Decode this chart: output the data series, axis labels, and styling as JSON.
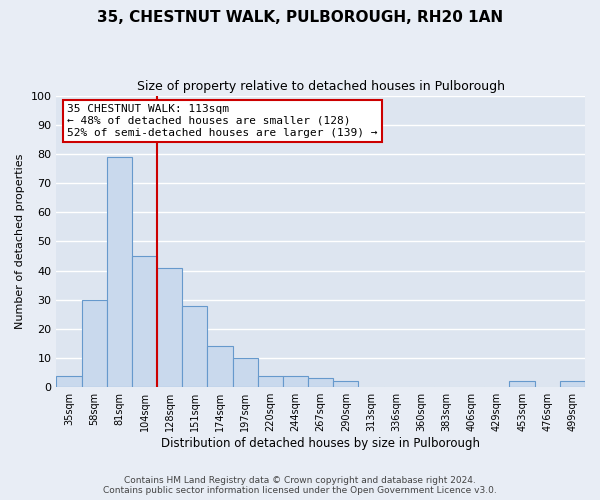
{
  "title": "35, CHESTNUT WALK, PULBOROUGH, RH20 1AN",
  "subtitle": "Size of property relative to detached houses in Pulborough",
  "xlabel": "Distribution of detached houses by size in Pulborough",
  "ylabel": "Number of detached properties",
  "footer_line1": "Contains HM Land Registry data © Crown copyright and database right 2024.",
  "footer_line2": "Contains public sector information licensed under the Open Government Licence v3.0.",
  "bar_labels": [
    "35sqm",
    "58sqm",
    "81sqm",
    "104sqm",
    "128sqm",
    "151sqm",
    "174sqm",
    "197sqm",
    "220sqm",
    "244sqm",
    "267sqm",
    "290sqm",
    "313sqm",
    "336sqm",
    "360sqm",
    "383sqm",
    "406sqm",
    "429sqm",
    "453sqm",
    "476sqm",
    "499sqm"
  ],
  "bar_heights": [
    4,
    30,
    79,
    45,
    41,
    28,
    14,
    10,
    4,
    4,
    3,
    2,
    0,
    0,
    0,
    0,
    0,
    0,
    2,
    0,
    2
  ],
  "bar_color": "#c9d9ed",
  "bar_edge_color": "#6699cc",
  "background_color": "#e8edf5",
  "plot_background_color": "#dde5f0",
  "grid_color": "#ffffff",
  "vline_color": "#cc0000",
  "annotation_title": "35 CHESTNUT WALK: 113sqm",
  "annotation_line1": "← 48% of detached houses are smaller (128)",
  "annotation_line2": "52% of semi-detached houses are larger (139) →",
  "annotation_box_color": "#ffffff",
  "annotation_box_edge_color": "#cc0000",
  "ylim": [
    0,
    100
  ],
  "yticks": [
    0,
    10,
    20,
    30,
    40,
    50,
    60,
    70,
    80,
    90,
    100
  ]
}
